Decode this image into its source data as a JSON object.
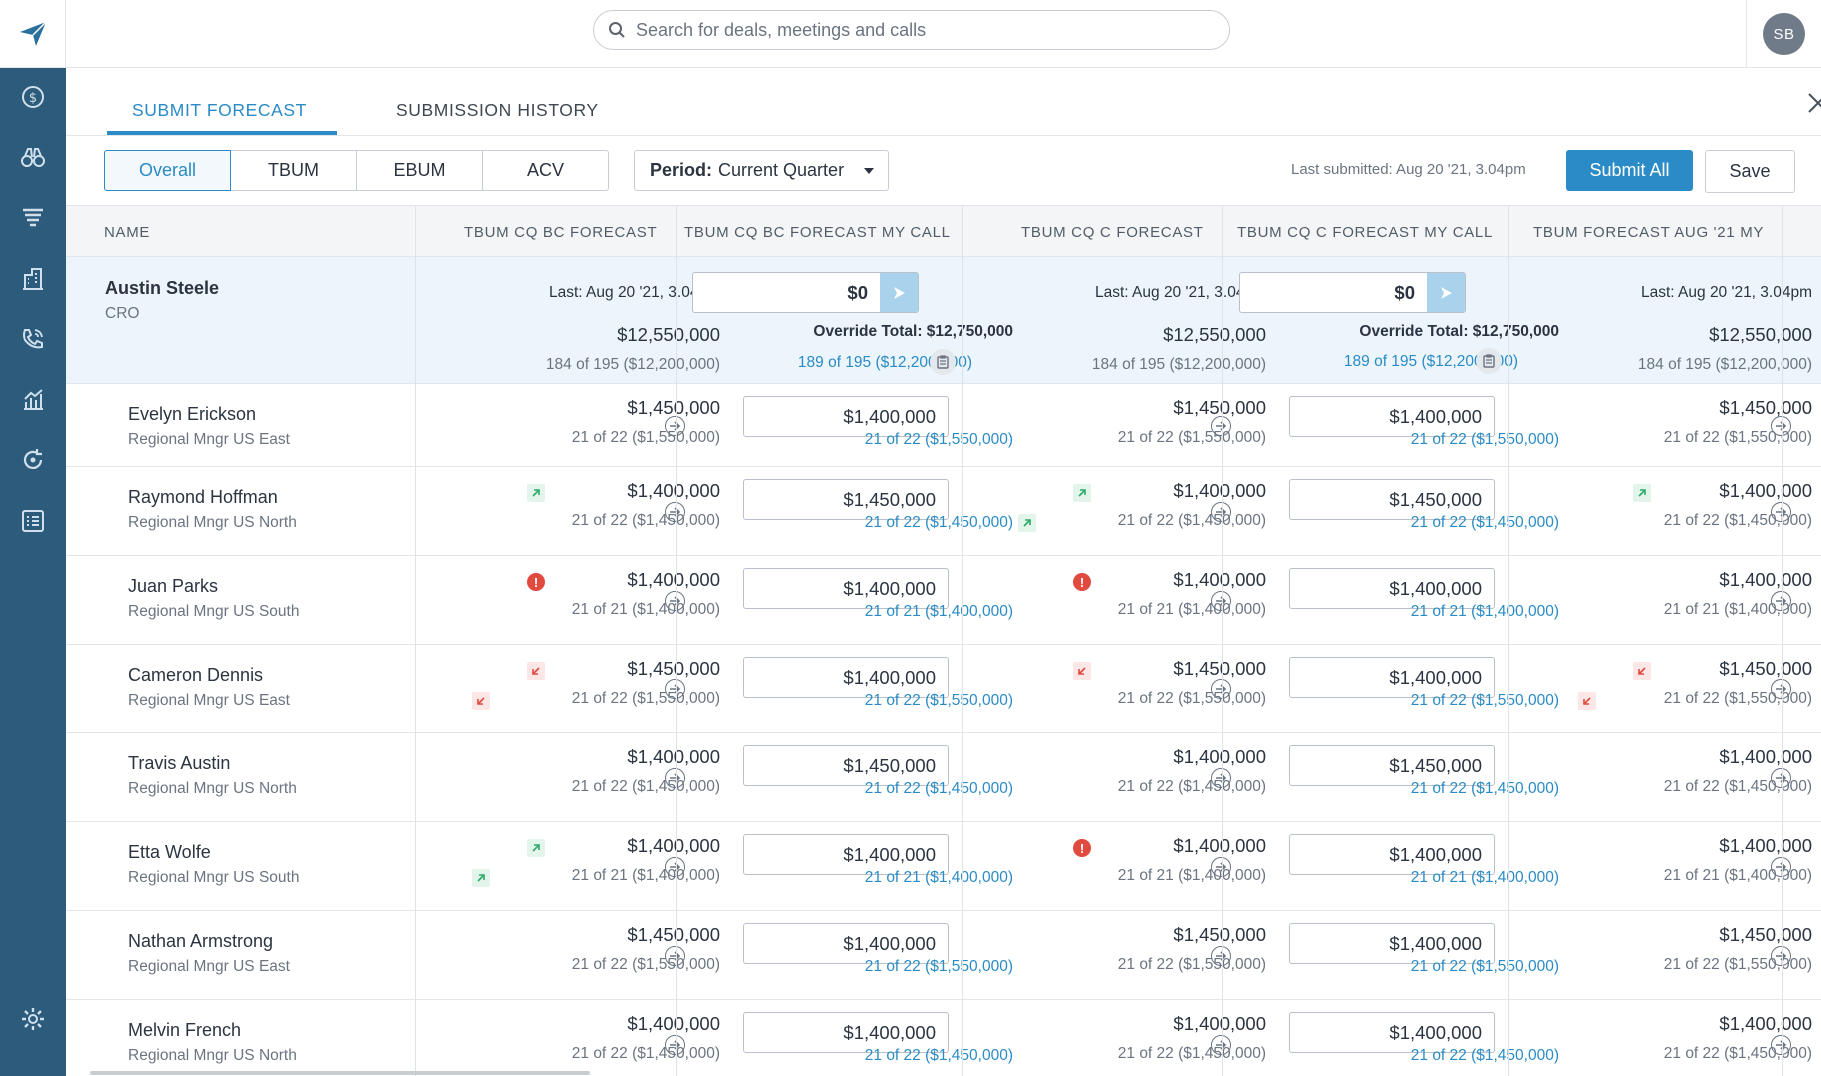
{
  "topbar": {
    "search_placeholder": "Search for deals, meetings and calls",
    "avatar_initials": "SB"
  },
  "sidebar": {
    "icons": [
      "dollar-icon",
      "binoculars-icon",
      "funnel-icon",
      "building-icon",
      "phone-icon",
      "analytics-icon",
      "refresh-icon",
      "list-icon",
      "settings-icon"
    ]
  },
  "tabs": [
    {
      "label": "SUBMIT FORECAST",
      "active": true
    },
    {
      "label": "SUBMISSION HISTORY",
      "active": false
    }
  ],
  "toolbar": {
    "segments": [
      {
        "label": "Overall",
        "active": true
      },
      {
        "label": "TBUM",
        "active": false
      },
      {
        "label": "EBUM",
        "active": false
      },
      {
        "label": "ACV",
        "active": false
      }
    ],
    "period_label": "Period:",
    "period_value": "Current Quarter",
    "last_submitted": "Last submitted: Aug 20 '21, 3.04pm",
    "submit_all": "Submit All",
    "save": "Save"
  },
  "table": {
    "columns": [
      "NAME",
      "TBUM CQ BC FORECAST",
      "TBUM CQ BC FORECAST MY CALL",
      "TBUM CQ C FORECAST",
      "TBUM CQ C FORECAST MY CALL",
      "TBUM FORECAST AUG '21 MY"
    ],
    "top_row": {
      "name": "Austin Steele",
      "role": "CRO",
      "last": "Last: Aug 20 '21, 3.04pm",
      "amount": "$12,550,000",
      "count": "184 of 195 ($12,200,000)",
      "mycall_value": "$0",
      "override_total": "Override Total: $12,750,000",
      "mycall_count": "189 of 195 ($12,200,000)"
    },
    "rows": [
      {
        "name": "Evelyn Erickson",
        "role": "Regional Mngr US East",
        "c1_amt": "$1,450,000",
        "c1_sub": "21 of 22 ($1,550,000)",
        "c2_val": "$1,400,000",
        "c2_sub": "21 of 22 ($1,550,000)",
        "c3_amt": "$1,450,000",
        "c3_sub": "21 of 22 ($1,550,000)",
        "c4_val": "$1,400,000",
        "c4_sub": "21 of 22 ($1,550,000)",
        "c5_amt": "$1,450,000",
        "c5_sub": "21 of 22 ($1,550,000)"
      },
      {
        "name": "Raymond Hoffman",
        "role": "Regional Mngr US North",
        "c1_amt": "$1,400,000",
        "c1_sub": "21 of 22 ($1,450,000)",
        "c2_val": "$1,450,000",
        "c2_sub": "21 of 22 ($1,450,000)",
        "c3_amt": "$1,400,000",
        "c3_sub": "21 of 22 ($1,450,000)",
        "c4_val": "$1,450,000",
        "c4_sub": "21 of 22 ($1,450,000)",
        "c5_amt": "$1,400,000",
        "c5_sub": "21 of 22 ($1,450,000)"
      },
      {
        "name": "Juan Parks",
        "role": "Regional Mngr US South",
        "c1_amt": "$1,400,000",
        "c1_sub": "21 of 21 ($1,400,000)",
        "c2_val": "$1,400,000",
        "c2_sub": "21 of 21 ($1,400,000)",
        "c3_amt": "$1,400,000",
        "c3_sub": "21 of 21 ($1,400,000)",
        "c4_val": "$1,400,000",
        "c4_sub": "21 of 21 ($1,400,000)",
        "c5_amt": "$1,400,000",
        "c5_sub": "21 of 21 ($1,400,000)"
      },
      {
        "name": "Cameron Dennis",
        "role": "Regional Mngr US East",
        "c1_amt": "$1,450,000",
        "c1_sub": "21 of 22 ($1,550,000)",
        "c2_val": "$1,400,000",
        "c2_sub": "21 of 22 ($1,550,000)",
        "c3_amt": "$1,450,000",
        "c3_sub": "21 of 22 ($1,550,000)",
        "c4_val": "$1,400,000",
        "c4_sub": "21 of 22 ($1,550,000)",
        "c5_amt": "$1,450,000",
        "c5_sub": "21 of 22 ($1,550,000)"
      },
      {
        "name": "Travis Austin",
        "role": "Regional Mngr US North",
        "c1_amt": "$1,400,000",
        "c1_sub": "21 of 22 ($1,450,000)",
        "c2_val": "$1,450,000",
        "c2_sub": "21 of 22 ($1,450,000)",
        "c3_amt": "$1,400,000",
        "c3_sub": "21 of 22 ($1,450,000)",
        "c4_val": "$1,450,000",
        "c4_sub": "21 of 22 ($1,450,000)",
        "c5_amt": "$1,400,000",
        "c5_sub": "21 of 22 ($1,450,000)"
      },
      {
        "name": "Etta Wolfe",
        "role": "Regional Mngr US South",
        "c1_amt": "$1,400,000",
        "c1_sub": "21 of 21 ($1,400,000)",
        "c2_val": "$1,400,000",
        "c2_sub": "21 of 21 ($1,400,000)",
        "c3_amt": "$1,400,000",
        "c3_sub": "21 of 21 ($1,400,000)",
        "c4_val": "$1,400,000",
        "c4_sub": "21 of 21 ($1,400,000)",
        "c5_amt": "$1,400,000",
        "c5_sub": "21 of 21 ($1,400,000)"
      },
      {
        "name": "Nathan Armstrong",
        "role": "Regional Mngr US East",
        "c1_amt": "$1,450,000",
        "c1_sub": "21 of 22 ($1,550,000)",
        "c2_val": "$1,400,000",
        "c2_sub": "21 of 22 ($1,550,000)",
        "c3_amt": "$1,450,000",
        "c3_sub": "21 of 22 ($1,550,000)",
        "c4_val": "$1,400,000",
        "c4_sub": "21 of 22 ($1,550,000)",
        "c5_amt": "$1,450,000",
        "c5_sub": "21 of 22 ($1,550,000)"
      },
      {
        "name": "Melvin French",
        "role": "Regional Mngr US North",
        "c1_amt": "$1,400,000",
        "c1_sub": "21 of 22 ($1,450,000)",
        "c2_val": "$1,400,000",
        "c2_sub": "21 of 22 ($1,450,000)",
        "c3_amt": "$1,400,000",
        "c3_sub": "21 of 22 ($1,450,000)",
        "c4_val": "$1,400,000",
        "c4_sub": "21 of 22 ($1,450,000)",
        "c5_amt": "$1,400,000",
        "c5_sub": "21 of 22 ($1,450,000)"
      }
    ]
  },
  "colors": {
    "accent": "#2a8bc6",
    "sidebar": "#2d5b7c",
    "up": "#2fa96a",
    "down": "#e04a3f"
  }
}
